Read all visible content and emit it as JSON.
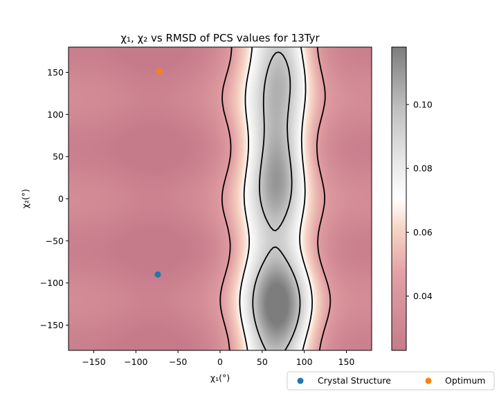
{
  "chart_data": {
    "type": "heatmap",
    "title": "χ₁, χ₂ vs RMSD of PCS values for 13Tyr",
    "xlabel": "χ₁(°)",
    "ylabel": "χ₂(°)",
    "xlim": [
      -180,
      180
    ],
    "ylim": [
      -180,
      180
    ],
    "xticks": [
      -150,
      -100,
      -50,
      0,
      50,
      100,
      150
    ],
    "yticks": [
      -150,
      -100,
      -50,
      0,
      50,
      100,
      150
    ],
    "colorbar": {
      "min": 0.023,
      "max": 0.118,
      "ticks": [
        0.04,
        0.06,
        0.08,
        0.1
      ],
      "colormap": "RdGy (reversed, alpha 0.5)"
    },
    "contour_levels": [
      0.045,
      0.07,
      0.095
    ],
    "points": [
      {
        "name": "Crystal Structure",
        "x": -74,
        "y": -90,
        "color": "#1f77b4"
      },
      {
        "name": "Optimum",
        "x": -72,
        "y": 151,
        "color": "#ff7f0e"
      }
    ],
    "legend": {
      "placement": "bottom-right, outside",
      "entries": [
        "Crystal Structure",
        "Optimum"
      ]
    },
    "grid": false
  }
}
